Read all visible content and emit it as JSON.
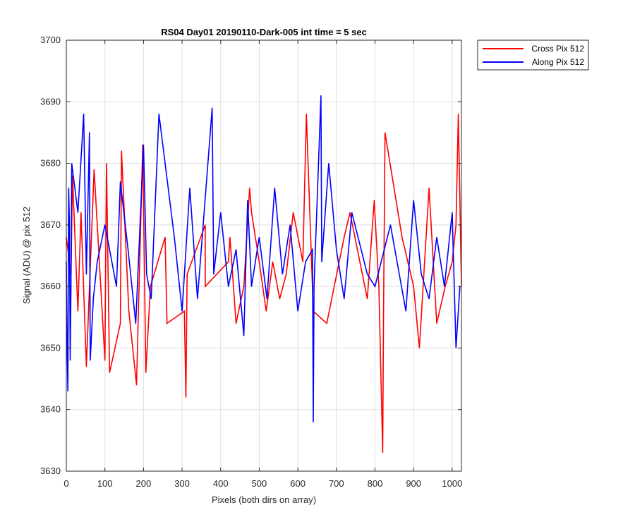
{
  "chart_data": {
    "type": "line",
    "title": "RS04 Day01 20190110-Dark-005 int time = 5 sec",
    "xlabel": "Pixels (both dirs on array)",
    "ylabel": "Signal (ADU) @ pix 512",
    "xlim": [
      0,
      1024
    ],
    "ylim": [
      3630,
      3700
    ],
    "xticks": [
      0,
      100,
      200,
      300,
      400,
      500,
      600,
      700,
      800,
      900,
      1000
    ],
    "yticks": [
      3630,
      3640,
      3650,
      3660,
      3670,
      3680,
      3690,
      3700
    ],
    "grid": true,
    "legend_position": "outside-top-right",
    "series": [
      {
        "name": "Cross Pix 512",
        "color": "#ff0000",
        "x": [
          0,
          8,
          12,
          16,
          30,
          38,
          52,
          72,
          100,
          104,
          112,
          140,
          143,
          162,
          182,
          198,
          206,
          218,
          256,
          261,
          306,
          310,
          313,
          360,
          360,
          420,
          424,
          440,
          460,
          475,
          480,
          500,
          518,
          535,
          553,
          570,
          588,
          613,
          622,
          640,
          675,
          720,
          735,
          780,
          798,
          810,
          820,
          822,
          826,
          870,
          900,
          915,
          940,
          960,
          982,
          1000,
          1010,
          1016,
          1024
        ],
        "y": [
          3668,
          3664,
          3662,
          3678,
          3656,
          3672,
          3647,
          3679,
          3648,
          3680,
          3646,
          3654,
          3682,
          3656,
          3644,
          3683,
          3646,
          3660,
          3668,
          3654,
          3656,
          3642,
          3662,
          3670,
          3660,
          3664,
          3668,
          3654,
          3660,
          3676,
          3672,
          3664,
          3656,
          3664,
          3658,
          3662,
          3672,
          3664,
          3688,
          3656,
          3654,
          3668,
          3672,
          3658,
          3674,
          3660,
          3633,
          3654,
          3685,
          3668,
          3660,
          3650,
          3676,
          3654,
          3660,
          3664,
          3670,
          3688,
          3660
        ]
      },
      {
        "name": "Along Pix 512",
        "color": "#0000ff",
        "x": [
          0,
          2,
          4,
          6,
          8,
          10,
          12,
          14,
          30,
          45,
          52,
          60,
          62,
          70,
          80,
          100,
          130,
          140,
          160,
          180,
          200,
          208,
          220,
          240,
          280,
          300,
          320,
          340,
          378,
          382,
          400,
          420,
          440,
          460,
          470,
          480,
          500,
          520,
          540,
          560,
          580,
          600,
          620,
          638,
          640,
          642,
          660,
          662,
          680,
          700,
          720,
          740,
          780,
          800,
          840,
          880,
          900,
          920,
          940,
          960,
          980,
          1000,
          1010,
          1020
        ],
        "y": [
          3664,
          3650,
          3643,
          3676,
          3670,
          3648,
          3660,
          3680,
          3672,
          3688,
          3662,
          3685,
          3648,
          3658,
          3664,
          3670,
          3660,
          3677,
          3666,
          3654,
          3683,
          3662,
          3658,
          3688,
          3668,
          3656,
          3676,
          3658,
          3689,
          3662,
          3672,
          3660,
          3666,
          3652,
          3674,
          3660,
          3668,
          3658,
          3676,
          3662,
          3670,
          3656,
          3664,
          3666,
          3638,
          3660,
          3691,
          3664,
          3680,
          3666,
          3658,
          3672,
          3662,
          3660,
          3670,
          3656,
          3674,
          3662,
          3658,
          3668,
          3660,
          3672,
          3650,
          3660
        ]
      }
    ]
  }
}
